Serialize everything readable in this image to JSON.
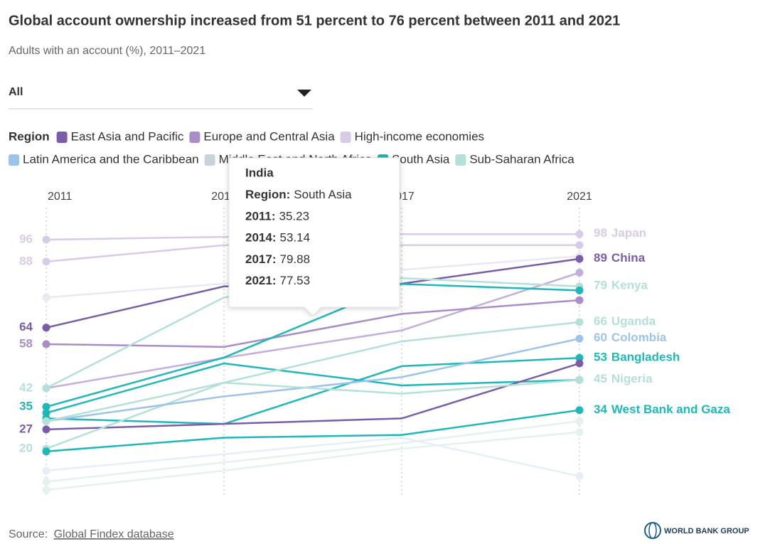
{
  "chart_data": {
    "type": "slope",
    "title": "Global account ownership increased from 51 percent to 76 percent between 2011 and 2021",
    "subtitle": "Adults with an account (%), 2011–2021",
    "filter": "All",
    "legend_title": "Region",
    "legend": [
      {
        "name": "East Asia and Pacific",
        "color": "#7b5ca8"
      },
      {
        "name": "Europe and Central Asia",
        "color": "#a98cc8"
      },
      {
        "name": "High-income economies",
        "color": "#d9cbe6"
      },
      {
        "name": "Latin America and the Caribbean",
        "color": "#9cc3ea"
      },
      {
        "name": "Middle East and North Africa",
        "color": "#c9d2dc"
      },
      {
        "name": "South Asia",
        "color": "#1fb8b8"
      },
      {
        "name": "Sub-Saharan Africa",
        "color": "#b3e0d9"
      }
    ],
    "categories": [
      "2011",
      "2014",
      "2017",
      "2021"
    ],
    "ylim": [
      0,
      100
    ],
    "series": [
      {
        "name": "Japan",
        "color": "#d9cbe6",
        "values": [
          96,
          97,
          98,
          98
        ],
        "value_labels": [
          "96",
          null,
          null,
          "98"
        ]
      },
      {
        "color": "#d9cbe6",
        "values": [
          88,
          94,
          94,
          94
        ],
        "value_labels": [
          "88",
          null,
          null,
          null
        ]
      },
      {
        "name": "China",
        "color": "#7b5ca8",
        "values": [
          64,
          79,
          80,
          89
        ],
        "value_labels": [
          "64",
          null,
          null,
          "89"
        ]
      },
      {
        "color": "#a98cc8",
        "values": [
          58,
          57,
          69,
          74
        ],
        "value_labels": [
          "58",
          null,
          null,
          null
        ]
      },
      {
        "color": "#c4aedb",
        "values": [
          42,
          53,
          63,
          84
        ],
        "value_labels": [
          null,
          null,
          null,
          null
        ]
      },
      {
        "name": "Kenya",
        "color": "#b3e0d9",
        "values": [
          42,
          75,
          82,
          79
        ],
        "value_labels": [
          "42",
          null,
          null,
          "79"
        ]
      },
      {
        "name": "India",
        "color": "#1fb8b8",
        "values": [
          35.23,
          53.14,
          79.88,
          77.53
        ],
        "value_labels": [
          "35",
          null,
          null,
          null
        ]
      },
      {
        "name": "Bangladesh",
        "color": "#1fb8b8",
        "values": [
          31,
          29,
          50,
          53
        ],
        "value_labels": [
          null,
          null,
          null,
          "53"
        ]
      },
      {
        "color": "#7b5ca8",
        "values": [
          27,
          29,
          31,
          51
        ],
        "value_labels": [
          "27",
          null,
          null,
          null
        ]
      },
      {
        "name": "Uganda",
        "color": "#b3e0d9",
        "values": [
          20,
          44,
          59,
          66
        ],
        "value_labels": [
          "20",
          null,
          null,
          "66"
        ]
      },
      {
        "name": "West Bank and Gaza",
        "color": "#1fb8b8",
        "values": [
          19,
          24,
          25,
          34
        ],
        "value_labels": [
          null,
          null,
          null,
          "34"
        ]
      },
      {
        "name": "Colombia",
        "color": "#9cc3ea",
        "values": [
          30,
          39,
          46,
          60
        ],
        "value_labels": [
          null,
          null,
          null,
          "60"
        ]
      },
      {
        "name": "Nigeria",
        "color": "#b3e0d9",
        "values": [
          30,
          44,
          40,
          45
        ],
        "value_labels": [
          null,
          null,
          null,
          "45"
        ]
      },
      {
        "color": "#1fb8b8",
        "values": [
          33,
          51,
          43,
          45
        ],
        "value_labels": [
          null,
          null,
          null,
          null
        ]
      },
      {
        "color": "#e3f2ef",
        "values": [
          8,
          15,
          22,
          30
        ],
        "value_labels": [
          null,
          null,
          null,
          null
        ]
      },
      {
        "color": "#e3f2ef",
        "values": [
          5,
          12,
          20,
          26
        ],
        "value_labels": [
          null,
          null,
          null,
          null
        ]
      },
      {
        "color": "#e6eef7",
        "values": [
          12,
          18,
          24,
          10
        ],
        "value_labels": [
          null,
          null,
          null,
          null
        ]
      },
      {
        "color": "#ede6f3",
        "values": [
          75,
          80,
          85,
          90
        ],
        "value_labels": [
          null,
          null,
          null,
          null
        ]
      }
    ],
    "tooltip": {
      "title": "India",
      "rows": [
        {
          "label": "Region:",
          "value": "South Asia"
        },
        {
          "label": "2011:",
          "value": "35.23"
        },
        {
          "label": "2014:",
          "value": "53.14"
        },
        {
          "label": "2017:",
          "value": "79.88"
        },
        {
          "label": "2021:",
          "value": "77.53"
        }
      ]
    },
    "source_label": "Source:",
    "source_link": "Global Findex database",
    "logo": "WORLD BANK GROUP"
  }
}
